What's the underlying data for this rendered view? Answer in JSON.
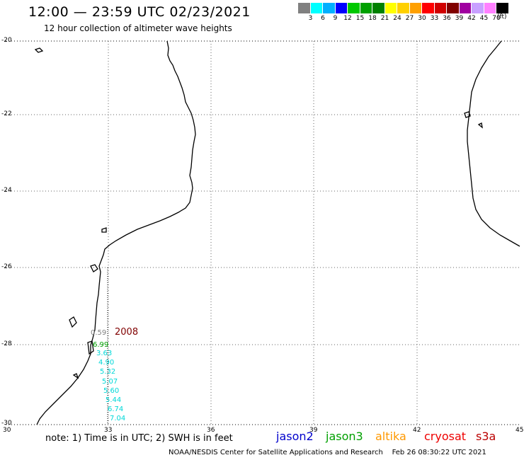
{
  "header": {
    "title": "12:00 — 23:59 UTC 02/23/2021",
    "subtitle": "12 hour collection of altimeter wave heights"
  },
  "legend": {
    "colors": [
      "#808080",
      "#00ffff",
      "#00b0ff",
      "#0000ff",
      "#00c800",
      "#00a000",
      "#008000",
      "#ffff00",
      "#ffd000",
      "#ffa000",
      "#ff0000",
      "#d00000",
      "#800000",
      "#a000a0",
      "#c8a0ff",
      "#ff80ff",
      "#000000"
    ],
    "labels": [
      "3",
      "6",
      "9",
      "12",
      "15",
      "18",
      "21",
      "24",
      "27",
      "30",
      "33",
      "36",
      "39",
      "42",
      "45",
      "70"
    ],
    "unit": "(ft)"
  },
  "axes": {
    "lat_labels": [
      "-20",
      "-22",
      "-24",
      "-26",
      "-28",
      "-30"
    ],
    "lon_labels": [
      "30",
      "33",
      "36",
      "39",
      "42",
      "45"
    ]
  },
  "annotations": {
    "year": "2008",
    "year_color": "#800000"
  },
  "swh_readings": [
    {
      "value": "0.59",
      "color": "#808080"
    },
    {
      "value": "6.99",
      "color": "#00a000"
    },
    {
      "value": "3.63",
      "color": "#00d8d8"
    },
    {
      "value": "4.90",
      "color": "#00d8d8"
    },
    {
      "value": "5.32",
      "color": "#00d8d8"
    },
    {
      "value": "5.07",
      "color": "#00d8d8"
    },
    {
      "value": "5.60",
      "color": "#00d8d8"
    },
    {
      "value": "5.44",
      "color": "#00d8d8"
    },
    {
      "value": "6.74",
      "color": "#00d8d8"
    },
    {
      "value": "7.04",
      "color": "#00d8d8"
    }
  ],
  "footer": {
    "note": "note: 1) Time is in UTC; 2) SWH is in feet",
    "satellites": [
      {
        "name": "jason2",
        "color": "#0000cc"
      },
      {
        "name": "jason3",
        "color": "#00a000"
      },
      {
        "name": "altika",
        "color": "#ff9900"
      },
      {
        "name": "cryosat",
        "color": "#ee0000"
      },
      {
        "name": "s3a",
        "color": "#bb0000"
      }
    ],
    "credit": "NOAA/NESDIS Center for Satellite Applications and Research",
    "timestamp": "Feb 26 08:30:22 UTC 2021"
  }
}
